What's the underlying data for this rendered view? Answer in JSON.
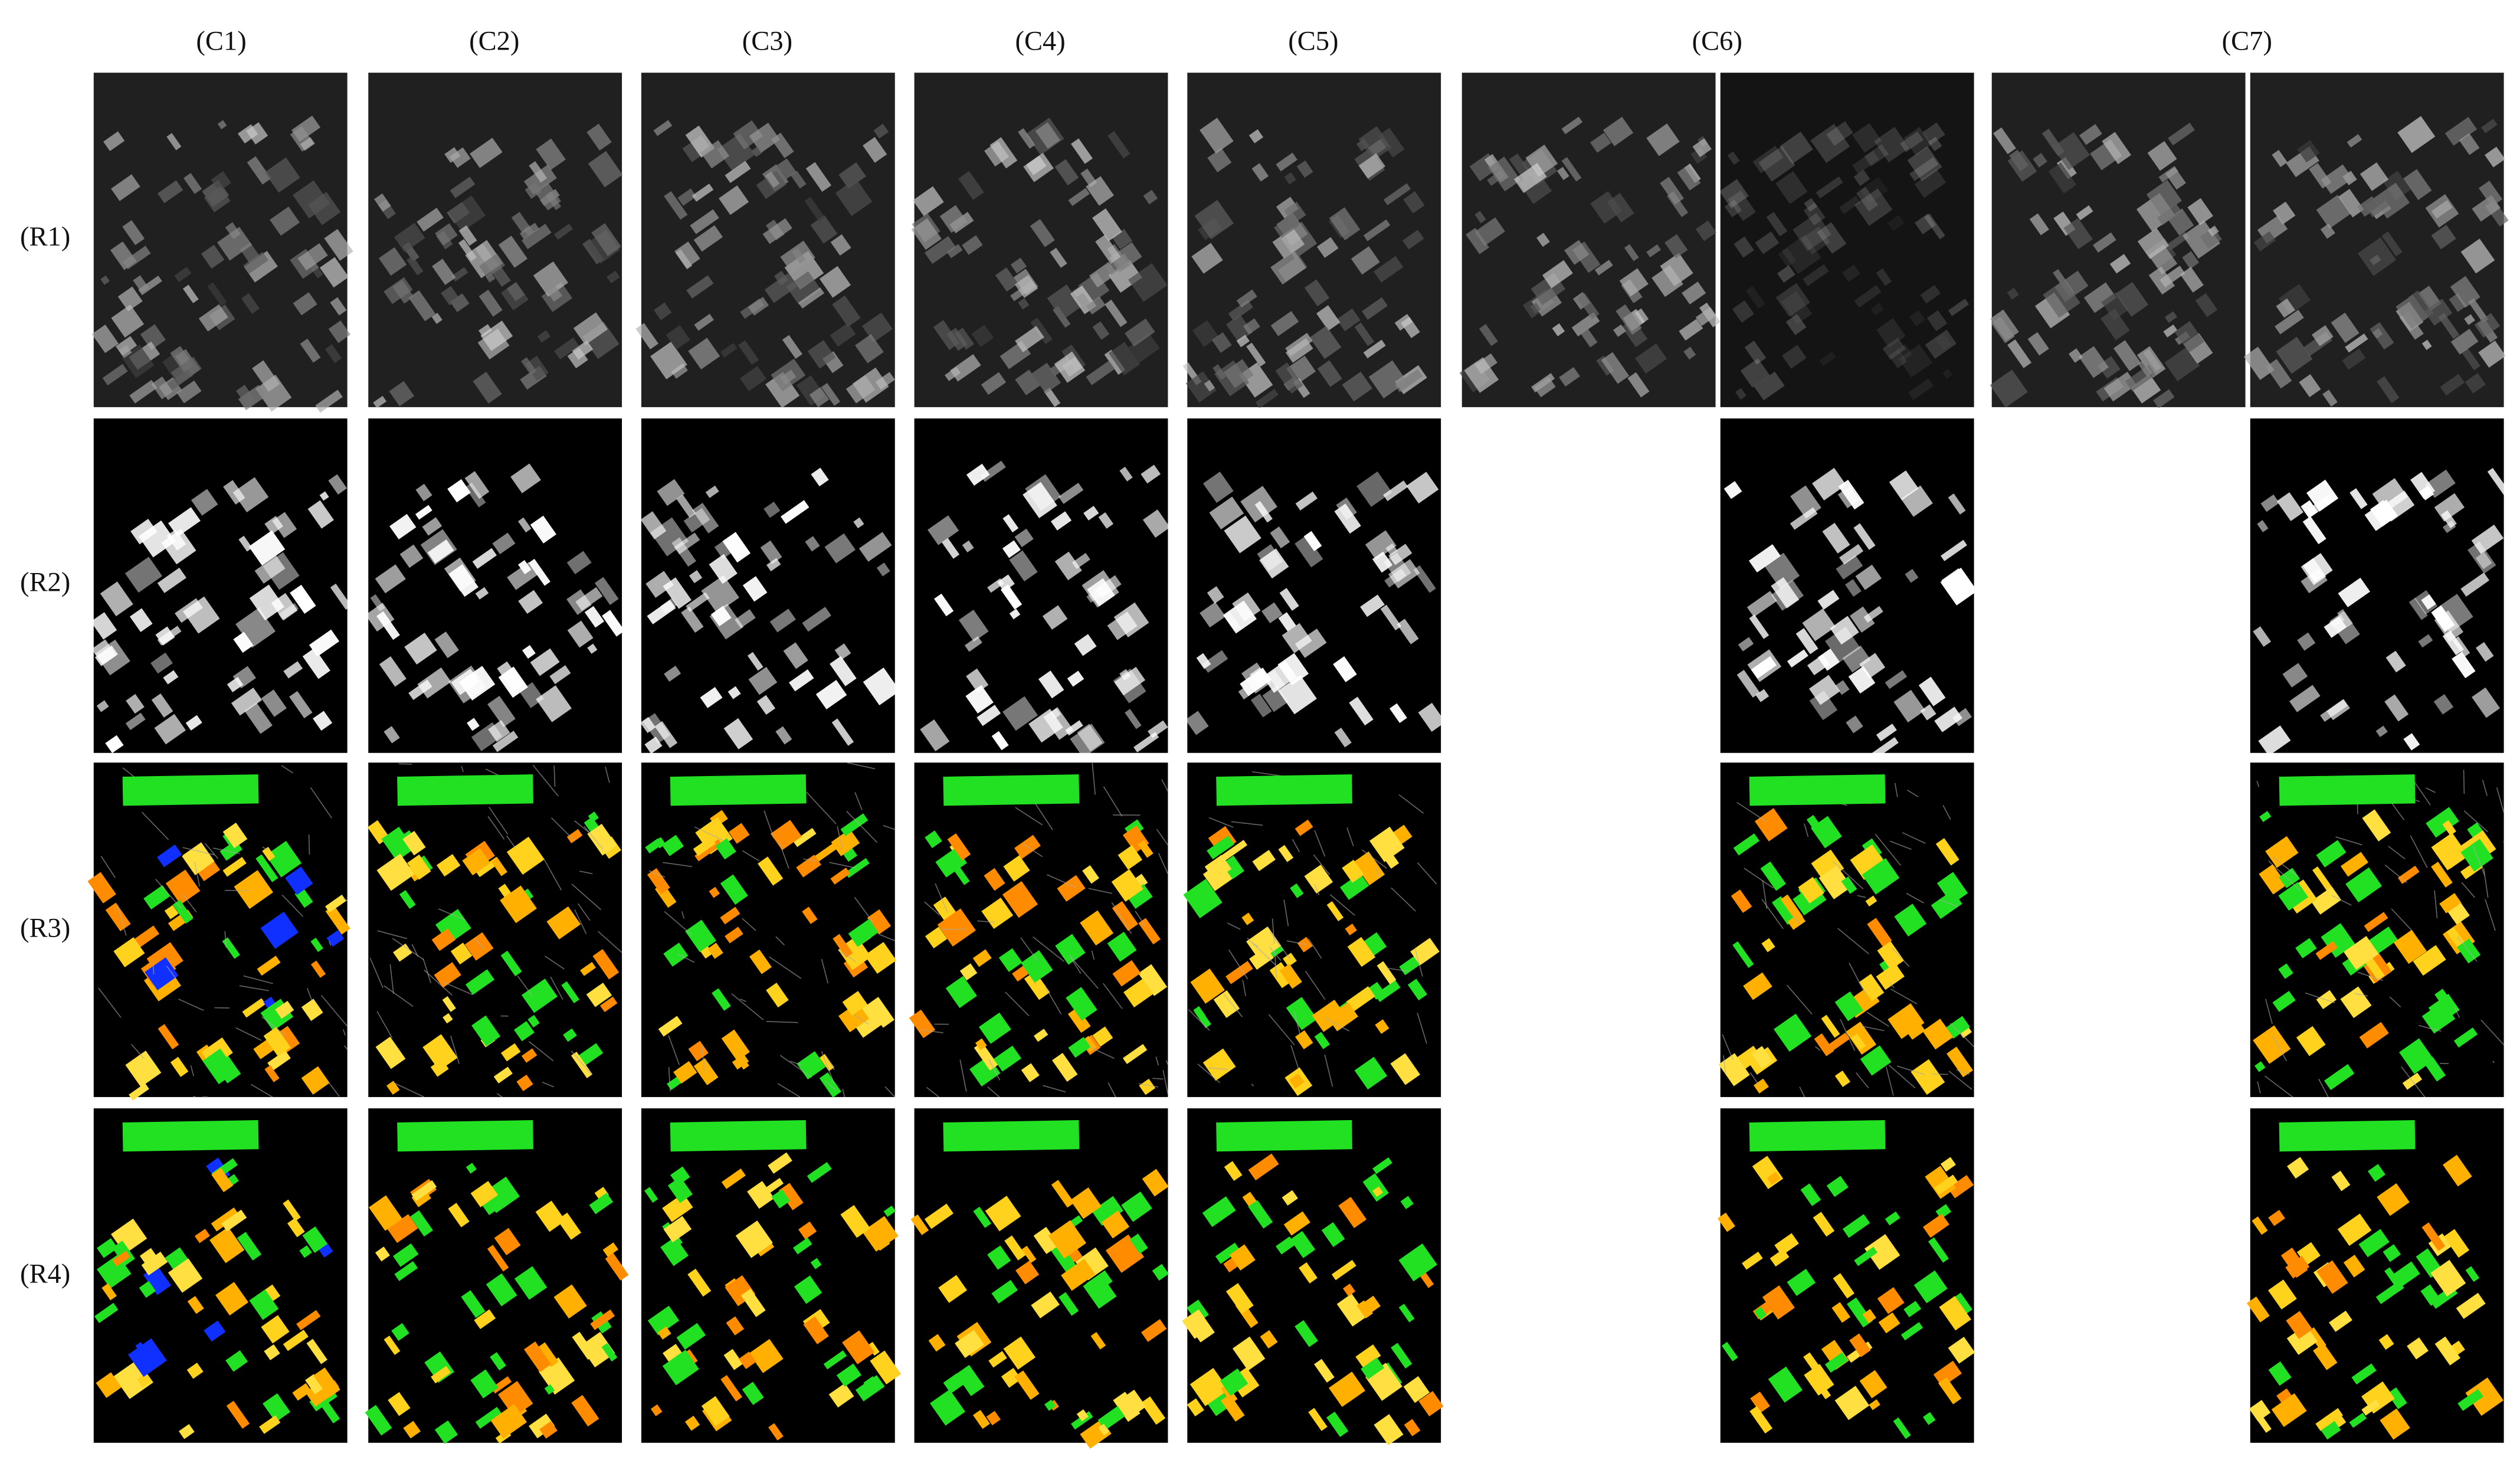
{
  "columns": [
    "(C1)",
    "(C2)",
    "(C3)",
    "(C4)",
    "(C5)",
    "(C6)",
    "(C7)"
  ],
  "rows": [
    "(R1)",
    "(R2)",
    "(R3)",
    "(R4)"
  ]
}
